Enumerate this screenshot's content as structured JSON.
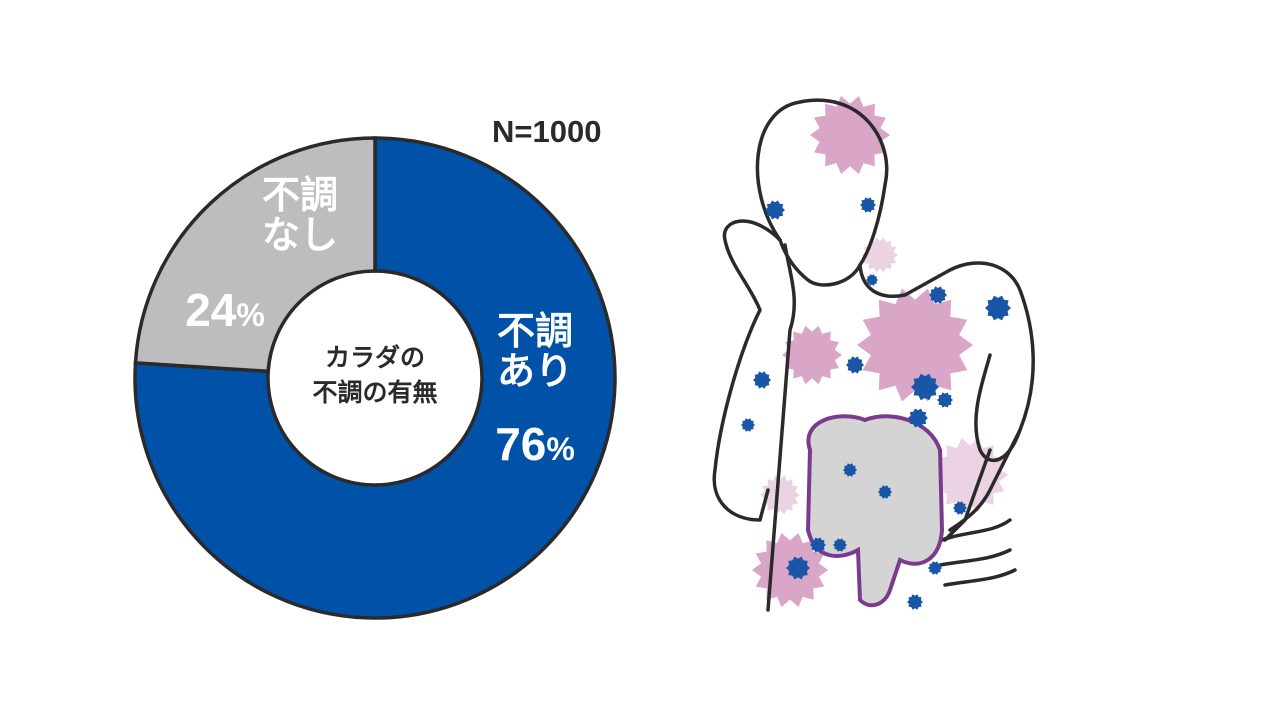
{
  "chart_data": {
    "type": "pie",
    "donut": true,
    "sample_size_label": "N=1000",
    "center_label": [
      "カラダの",
      "不調の有無"
    ],
    "slices": [
      {
        "label": [
          "不調",
          "あり"
        ],
        "value": 76,
        "value_label": "76",
        "color": "#0051a8"
      },
      {
        "label": [
          "不調",
          "なし"
        ],
        "value": 24,
        "value_label": "24",
        "color": "#bdbdbd"
      }
    ],
    "percent_sign": "%",
    "start": "12 o'clock, clockwise"
  },
  "illustration": {
    "subject": "person-holding-head-and-stomach",
    "colors": {
      "pink": "#d9a6c8",
      "light_pink": "#ecd3e4",
      "blue_dot": "#1a56a8",
      "intestine_outline": "#7a3b8f"
    }
  }
}
